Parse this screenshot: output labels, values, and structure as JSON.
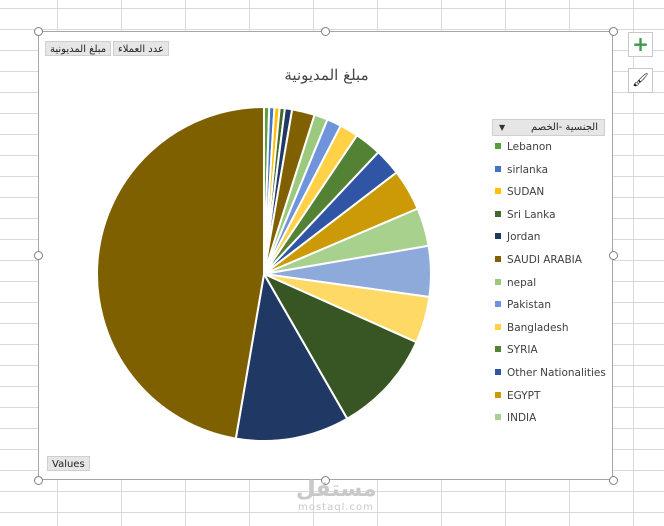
{
  "field_buttons": {
    "count_customers": "عدد العملاء",
    "debt_amount": "مبلغ المديونية",
    "values": "Values"
  },
  "legend_header": "الجنسية -الخصم",
  "side_buttons": {
    "add": "+",
    "style": "🖌"
  },
  "watermark": {
    "arabic": "مستقل",
    "latin": "mostaql.com"
  },
  "chart_data": {
    "type": "pie",
    "title": "مبلغ المديونية",
    "legend_position": "right",
    "slices": [
      {
        "label": "Lebanon",
        "value": 0.5,
        "color": "#5b9e3d"
      },
      {
        "label": "sirlanka",
        "value": 0.5,
        "color": "#4472c4"
      },
      {
        "label": "SUDAN",
        "value": 0.5,
        "color": "#ffc000"
      },
      {
        "label": "Sri Lanka",
        "value": 0.5,
        "color": "#43682b"
      },
      {
        "label": "Jordan",
        "value": 0.7,
        "color": "#203864"
      },
      {
        "label": "SAUDI ARABIA",
        "value": 2.2,
        "color": "#806000"
      },
      {
        "label": "nepal",
        "value": 1.3,
        "color": "#9bc97d"
      },
      {
        "label": "Pakistan",
        "value": 1.4,
        "color": "#6f94dc"
      },
      {
        "label": "Bangladesh",
        "value": 1.8,
        "color": "#ffd147"
      },
      {
        "label": "SYRIA",
        "value": 2.6,
        "color": "#548235"
      },
      {
        "label": "Other Nationalities",
        "value": 2.6,
        "color": "#2f55a4"
      },
      {
        "label": "EGYPT",
        "value": 4.0,
        "color": "#cc9a06"
      },
      {
        "label": "INDIA",
        "value": 3.7,
        "color": "#a9d18e"
      },
      {
        "label": "",
        "value": 4.9,
        "color": "#8eaadb"
      },
      {
        "label": "",
        "value": 4.5,
        "color": "#ffd966"
      },
      {
        "label": "",
        "value": 10.0,
        "color": "#375623"
      },
      {
        "label": "",
        "value": 11.0,
        "color": "#203864"
      },
      {
        "label": "",
        "value": 47.3,
        "color": "#7f6000"
      }
    ]
  }
}
